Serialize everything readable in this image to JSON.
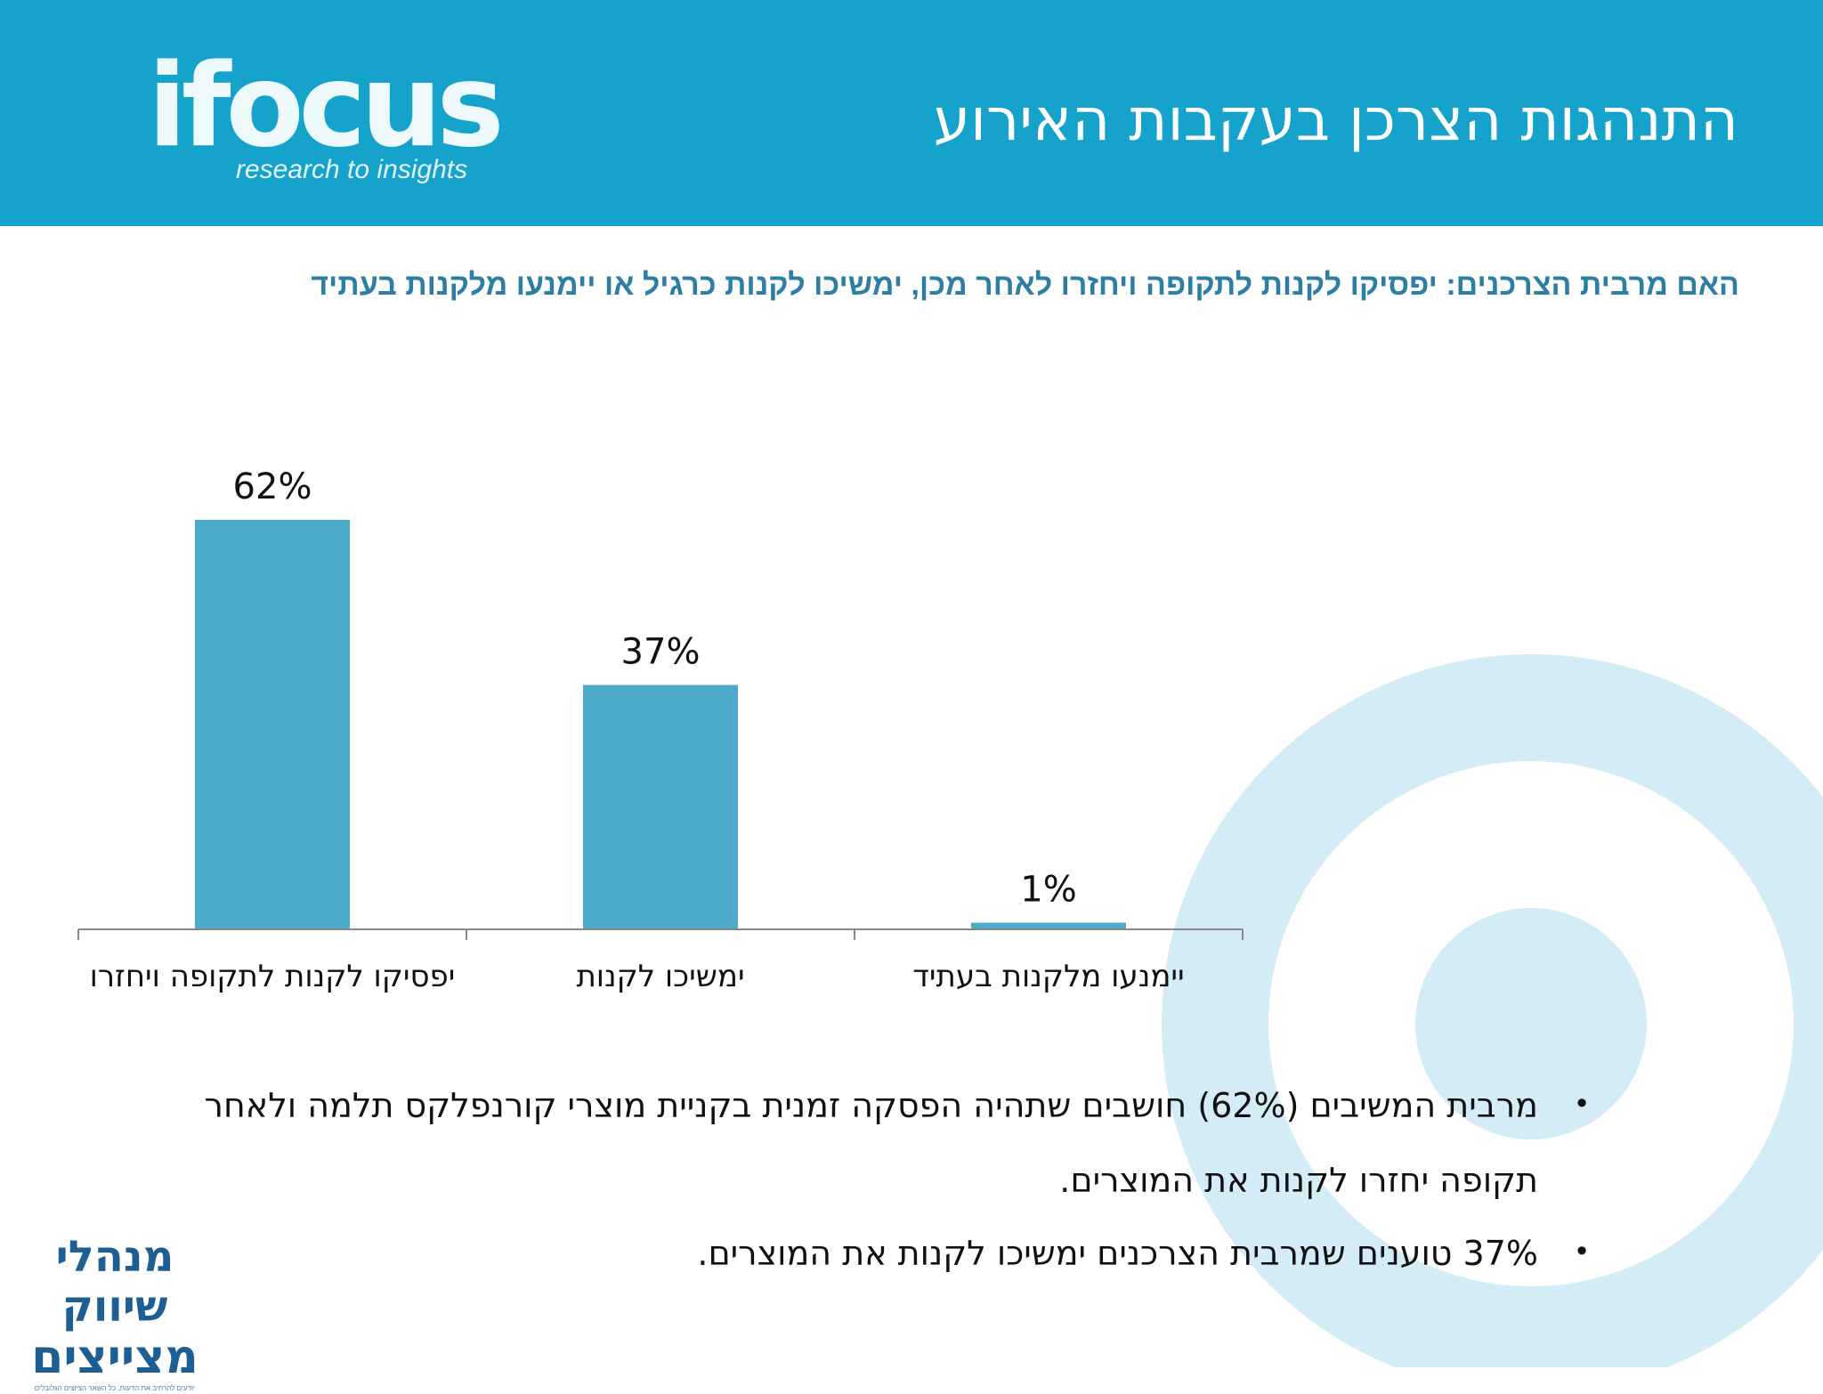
{
  "header": {
    "title": "התנהגות הצרכן בעקבות האירוע",
    "logo_word": "ifocus",
    "logo_tagline": "research to insights"
  },
  "subtitle": "האם מרבית הצרכנים: יפסיקו לקנות לתקופה ויחזרו לאחר מכן, ימשיכו לקנות כרגיל או יימנעו מלקנות בעתיד",
  "chart_data": {
    "type": "bar",
    "categories": [
      "יפסיקו לקנות לתקופה ויחזרו",
      "ימשיכו לקנות",
      "יימנעו מלקנות בעתיד"
    ],
    "values": [
      62,
      37,
      1
    ],
    "value_labels": [
      "62%",
      "37%",
      "1%"
    ],
    "title": "",
    "xlabel": "",
    "ylabel": "",
    "ylim": [
      0,
      62
    ],
    "grid": false,
    "legend": "none",
    "bar_color": "#4aaac8"
  },
  "bullets": [
    {
      "line1": "מרבית המשיבים (62%) חושבים שתהיה הפסקה זמנית בקניית מוצרי קורנפלקס תלמה ולאחר",
      "line2": "תקופה יחזרו לקנות את המוצרים."
    },
    {
      "line1": "37% טוענים שמרבית הצרכנים ימשיכו לקנות את המוצרים."
    }
  ],
  "bullet_symbol": "•",
  "footer_logo": {
    "line1": "מנהלי שיווק",
    "line2": "מצייצים",
    "tagline": "יודעים להרחיב את הדעות, כל השאר הציוצים הגלובלים"
  },
  "colors": {
    "header_bg": "#16a3cb",
    "subtitle": "#2c7ea4",
    "bar": "#4aaac8",
    "deco_ring": "#d3ecf6"
  }
}
